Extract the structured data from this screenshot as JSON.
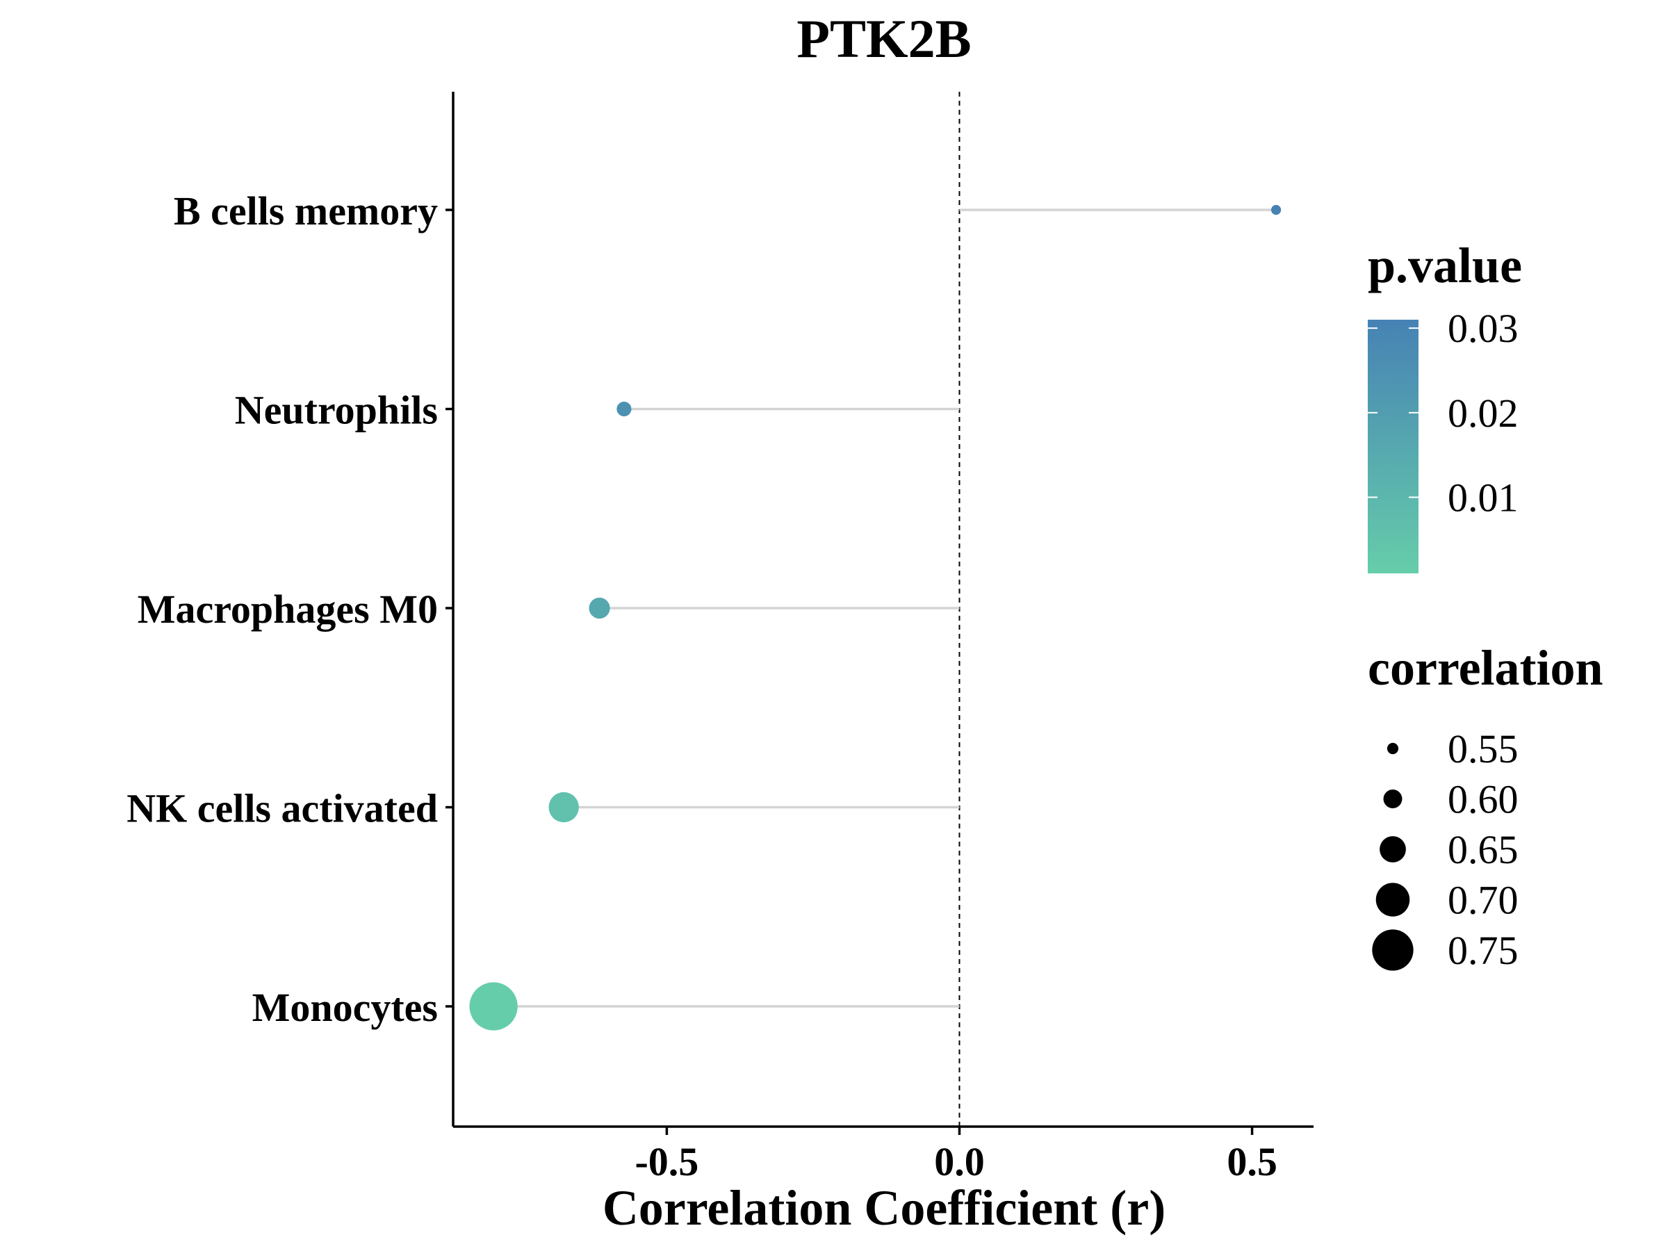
{
  "chart_data": {
    "type": "lollipop",
    "title": "PTK2B",
    "xlabel": "Correlation Coefficient (r)",
    "ylabel": "",
    "xlim": [
      -0.865,
      0.605
    ],
    "xticks": [
      -0.5,
      0.0,
      0.5
    ],
    "xtick_labels": [
      "-0.5",
      "0.0",
      "0.5"
    ],
    "reference_line_x": 0,
    "grid": false,
    "categories": [
      "B cells memory",
      "Neutrophils",
      "Macrophages M0",
      "NK cells activated",
      "Monocytes"
    ],
    "values": [
      0.541,
      -0.573,
      -0.615,
      -0.676,
      -0.796
    ],
    "p_values": [
      0.031,
      0.025,
      0.016,
      0.006,
      0.001
    ],
    "stem_color": "#d4d4d4",
    "legends": {
      "color": {
        "title": "p.value",
        "ticks": [
          0.03,
          0.02,
          0.01
        ],
        "tick_labels": [
          "0.03",
          "0.02",
          "0.01"
        ],
        "range": [
          0.001,
          0.031
        ],
        "color_low": "#66cdaa",
        "color_high": "#4682b4",
        "placement": "right"
      },
      "size": {
        "title": "correlation",
        "values": [
          0.55,
          0.6,
          0.65,
          0.7,
          0.75
        ],
        "labels": [
          "0.55",
          "0.60",
          "0.65",
          "0.70",
          "0.75"
        ],
        "placement": "right"
      }
    }
  }
}
